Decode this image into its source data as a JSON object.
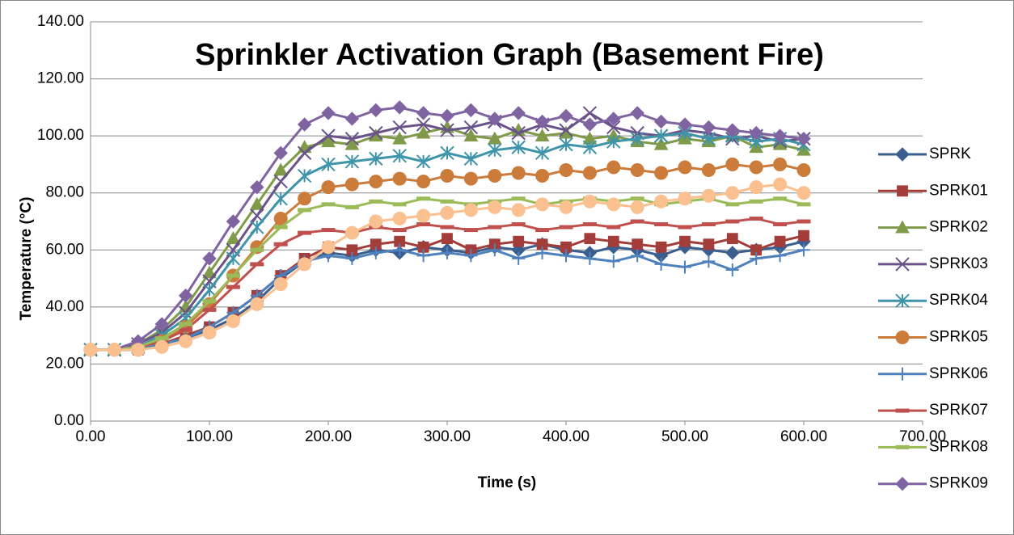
{
  "chart_data": {
    "type": "scatter",
    "title": "Sprinkler Activation Graph (Basement Fire)",
    "x_label": "Time (s)",
    "y_label": "Temperature (°C)",
    "x": [
      0,
      20,
      40,
      60,
      80,
      100,
      120,
      140,
      160,
      180,
      200,
      220,
      240,
      260,
      280,
      300,
      320,
      340,
      360,
      380,
      400,
      420,
      440,
      460,
      480,
      500,
      520,
      540,
      560,
      580,
      600
    ],
    "xlim": [
      0,
      700
    ],
    "xticks": [
      {
        "value": 0,
        "label": "0.00"
      },
      {
        "value": 100,
        "label": "100.00"
      },
      {
        "value": 200,
        "label": "200.00"
      },
      {
        "value": 300,
        "label": "300.00"
      },
      {
        "value": 400,
        "label": "400.00"
      },
      {
        "value": 500,
        "label": "500.00"
      },
      {
        "value": 600,
        "label": "600.00"
      },
      {
        "value": 700,
        "label": "700.00"
      }
    ],
    "ylim": [
      0,
      140
    ],
    "yticks": [
      {
        "value": 0,
        "label": "0.00"
      },
      {
        "value": 20,
        "label": "20.00"
      },
      {
        "value": 40,
        "label": "40.00"
      },
      {
        "value": 60,
        "label": "60.00"
      },
      {
        "value": 80,
        "label": "80.00"
      },
      {
        "value": 100,
        "label": "100.00"
      },
      {
        "value": 120,
        "label": "120.00"
      },
      {
        "value": 140,
        "label": "140.00"
      }
    ],
    "grid": true,
    "legend": "right",
    "series": [
      {
        "name": "SPRK",
        "color": "#3a5f8f",
        "marker": "diamond",
        "values": [
          25,
          25,
          25,
          27,
          29,
          32,
          36,
          42,
          50,
          56,
          59,
          58,
          60,
          59,
          61,
          60,
          59,
          61,
          60,
          62,
          60,
          59,
          61,
          60,
          58,
          61,
          60,
          59,
          60,
          61,
          63
        ]
      },
      {
        "name": "SPRK01",
        "color": "#a33d3a",
        "marker": "square",
        "values": [
          25,
          25,
          25,
          27,
          30,
          33,
          38,
          44,
          51,
          57,
          61,
          60,
          62,
          63,
          61,
          64,
          60,
          62,
          63,
          62,
          61,
          64,
          63,
          62,
          61,
          63,
          62,
          64,
          60,
          63,
          65
        ]
      },
      {
        "name": "SPRK02",
        "color": "#7f9a48",
        "marker": "triangle",
        "values": [
          25,
          25,
          27,
          32,
          40,
          52,
          64,
          76,
          88,
          96,
          98,
          97,
          100,
          99,
          101,
          103,
          100,
          99,
          102,
          100,
          101,
          99,
          100,
          98,
          97,
          99,
          98,
          100,
          96,
          97,
          95
        ]
      },
      {
        "name": "SPRK03",
        "color": "#69538a",
        "marker": "x",
        "values": [
          25,
          25,
          27,
          31,
          38,
          49,
          60,
          72,
          84,
          94,
          100,
          99,
          101,
          103,
          104,
          102,
          103,
          105,
          101,
          104,
          102,
          108,
          103,
          101,
          100,
          102,
          101,
          99,
          100,
          98,
          99
        ]
      },
      {
        "name": "SPRK04",
        "color": "#3e94a8",
        "marker": "star",
        "values": [
          25,
          25,
          26,
          30,
          36,
          46,
          57,
          68,
          78,
          86,
          90,
          91,
          92,
          93,
          91,
          94,
          92,
          95,
          96,
          94,
          97,
          96,
          98,
          99,
          100,
          101,
          99,
          100,
          98,
          99,
          97
        ]
      },
      {
        "name": "SPRK05",
        "color": "#cb7b3a",
        "marker": "circle",
        "values": [
          25,
          25,
          25,
          28,
          33,
          41,
          51,
          61,
          71,
          78,
          82,
          83,
          84,
          85,
          84,
          86,
          85,
          86,
          87,
          86,
          88,
          87,
          89,
          88,
          87,
          89,
          88,
          90,
          89,
          90,
          88
        ]
      },
      {
        "name": "SPRK06",
        "color": "#4f81bd",
        "marker": "plus",
        "values": [
          25,
          25,
          25,
          27,
          29,
          33,
          38,
          44,
          51,
          56,
          58,
          57,
          59,
          60,
          58,
          59,
          58,
          60,
          57,
          59,
          58,
          57,
          56,
          58,
          55,
          54,
          56,
          53,
          57,
          58,
          60
        ]
      },
      {
        "name": "SPRK07",
        "color": "#c0504d",
        "marker": "dash",
        "values": [
          25,
          25,
          26,
          28,
          32,
          39,
          47,
          55,
          62,
          66,
          67,
          66,
          68,
          67,
          69,
          68,
          67,
          68,
          69,
          67,
          68,
          69,
          68,
          70,
          69,
          68,
          69,
          70,
          71,
          69,
          70
        ]
      },
      {
        "name": "SPRK08",
        "color": "#9bbb59",
        "marker": "dash",
        "values": [
          25,
          25,
          26,
          29,
          34,
          42,
          51,
          60,
          68,
          74,
          76,
          75,
          77,
          76,
          78,
          77,
          76,
          77,
          78,
          76,
          77,
          78,
          77,
          78,
          76,
          77,
          78,
          76,
          77,
          78,
          76
        ]
      },
      {
        "name": "SPRK09",
        "color": "#8064a2",
        "marker": "diamond",
        "values": [
          25,
          25,
          28,
          34,
          44,
          57,
          70,
          82,
          94,
          104,
          108,
          106,
          109,
          110,
          108,
          107,
          109,
          106,
          108,
          105,
          107,
          104,
          106,
          108,
          105,
          104,
          103,
          102,
          101,
          100,
          99
        ]
      },
      {
        "color": "#fac090",
        "marker": "circle",
        "values": [
          25,
          25,
          25,
          26,
          28,
          31,
          35,
          41,
          48,
          55,
          61,
          66,
          70,
          71,
          72,
          73,
          74,
          75,
          74,
          76,
          75,
          77,
          76,
          75,
          77,
          78,
          79,
          80,
          82,
          83,
          80
        ]
      }
    ]
  }
}
